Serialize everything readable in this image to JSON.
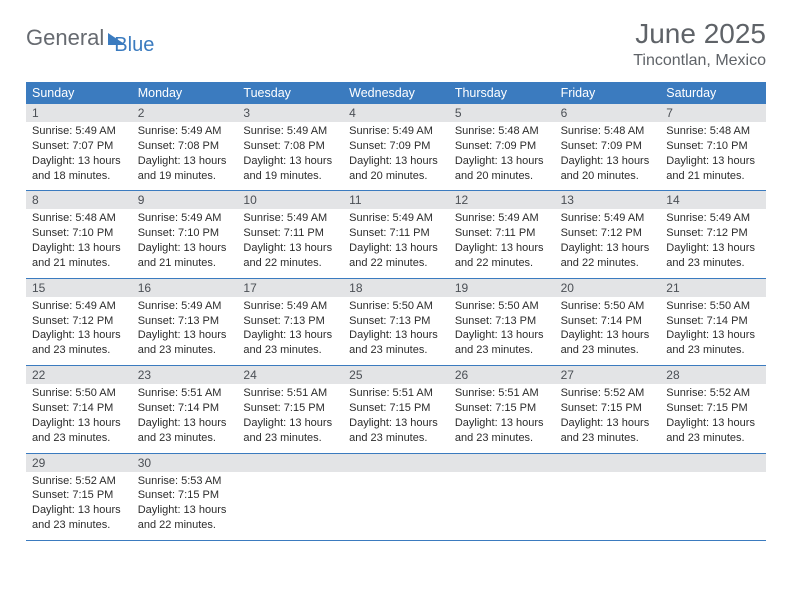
{
  "brand": {
    "part1": "General",
    "part2": "Blue"
  },
  "title": "June 2025",
  "location": "Tincontlan, Mexico",
  "daynames": [
    "Sunday",
    "Monday",
    "Tuesday",
    "Wednesday",
    "Thursday",
    "Friday",
    "Saturday"
  ],
  "colors": {
    "header_bg": "#3b7bbf",
    "header_text": "#ffffff",
    "daynum_bg": "#e3e4e6",
    "row_border": "#3b7bbf",
    "title_color": "#5f6368",
    "text_color": "#2c2c2c",
    "logo_gray": "#666a70",
    "logo_blue": "#3b7bbf"
  },
  "typography": {
    "title_fontsize": 28,
    "location_fontsize": 16,
    "dayname_fontsize": 12.5,
    "daynum_fontsize": 12,
    "detail_fontsize": 11
  },
  "weeks": [
    [
      {
        "n": "1",
        "sr": "5:49 AM",
        "ss": "7:07 PM",
        "dl": "13 hours and 18 minutes."
      },
      {
        "n": "2",
        "sr": "5:49 AM",
        "ss": "7:08 PM",
        "dl": "13 hours and 19 minutes."
      },
      {
        "n": "3",
        "sr": "5:49 AM",
        "ss": "7:08 PM",
        "dl": "13 hours and 19 minutes."
      },
      {
        "n": "4",
        "sr": "5:49 AM",
        "ss": "7:09 PM",
        "dl": "13 hours and 20 minutes."
      },
      {
        "n": "5",
        "sr": "5:48 AM",
        "ss": "7:09 PM",
        "dl": "13 hours and 20 minutes."
      },
      {
        "n": "6",
        "sr": "5:48 AM",
        "ss": "7:09 PM",
        "dl": "13 hours and 20 minutes."
      },
      {
        "n": "7",
        "sr": "5:48 AM",
        "ss": "7:10 PM",
        "dl": "13 hours and 21 minutes."
      }
    ],
    [
      {
        "n": "8",
        "sr": "5:48 AM",
        "ss": "7:10 PM",
        "dl": "13 hours and 21 minutes."
      },
      {
        "n": "9",
        "sr": "5:49 AM",
        "ss": "7:10 PM",
        "dl": "13 hours and 21 minutes."
      },
      {
        "n": "10",
        "sr": "5:49 AM",
        "ss": "7:11 PM",
        "dl": "13 hours and 22 minutes."
      },
      {
        "n": "11",
        "sr": "5:49 AM",
        "ss": "7:11 PM",
        "dl": "13 hours and 22 minutes."
      },
      {
        "n": "12",
        "sr": "5:49 AM",
        "ss": "7:11 PM",
        "dl": "13 hours and 22 minutes."
      },
      {
        "n": "13",
        "sr": "5:49 AM",
        "ss": "7:12 PM",
        "dl": "13 hours and 22 minutes."
      },
      {
        "n": "14",
        "sr": "5:49 AM",
        "ss": "7:12 PM",
        "dl": "13 hours and 23 minutes."
      }
    ],
    [
      {
        "n": "15",
        "sr": "5:49 AM",
        "ss": "7:12 PM",
        "dl": "13 hours and 23 minutes."
      },
      {
        "n": "16",
        "sr": "5:49 AM",
        "ss": "7:13 PM",
        "dl": "13 hours and 23 minutes."
      },
      {
        "n": "17",
        "sr": "5:49 AM",
        "ss": "7:13 PM",
        "dl": "13 hours and 23 minutes."
      },
      {
        "n": "18",
        "sr": "5:50 AM",
        "ss": "7:13 PM",
        "dl": "13 hours and 23 minutes."
      },
      {
        "n": "19",
        "sr": "5:50 AM",
        "ss": "7:13 PM",
        "dl": "13 hours and 23 minutes."
      },
      {
        "n": "20",
        "sr": "5:50 AM",
        "ss": "7:14 PM",
        "dl": "13 hours and 23 minutes."
      },
      {
        "n": "21",
        "sr": "5:50 AM",
        "ss": "7:14 PM",
        "dl": "13 hours and 23 minutes."
      }
    ],
    [
      {
        "n": "22",
        "sr": "5:50 AM",
        "ss": "7:14 PM",
        "dl": "13 hours and 23 minutes."
      },
      {
        "n": "23",
        "sr": "5:51 AM",
        "ss": "7:14 PM",
        "dl": "13 hours and 23 minutes."
      },
      {
        "n": "24",
        "sr": "5:51 AM",
        "ss": "7:15 PM",
        "dl": "13 hours and 23 minutes."
      },
      {
        "n": "25",
        "sr": "5:51 AM",
        "ss": "7:15 PM",
        "dl": "13 hours and 23 minutes."
      },
      {
        "n": "26",
        "sr": "5:51 AM",
        "ss": "7:15 PM",
        "dl": "13 hours and 23 minutes."
      },
      {
        "n": "27",
        "sr": "5:52 AM",
        "ss": "7:15 PM",
        "dl": "13 hours and 23 minutes."
      },
      {
        "n": "28",
        "sr": "5:52 AM",
        "ss": "7:15 PM",
        "dl": "13 hours and 23 minutes."
      }
    ],
    [
      {
        "n": "29",
        "sr": "5:52 AM",
        "ss": "7:15 PM",
        "dl": "13 hours and 23 minutes."
      },
      {
        "n": "30",
        "sr": "5:53 AM",
        "ss": "7:15 PM",
        "dl": "13 hours and 22 minutes."
      },
      null,
      null,
      null,
      null,
      null
    ]
  ],
  "labels": {
    "sunrise": "Sunrise:",
    "sunset": "Sunset:",
    "daylight": "Daylight:"
  }
}
